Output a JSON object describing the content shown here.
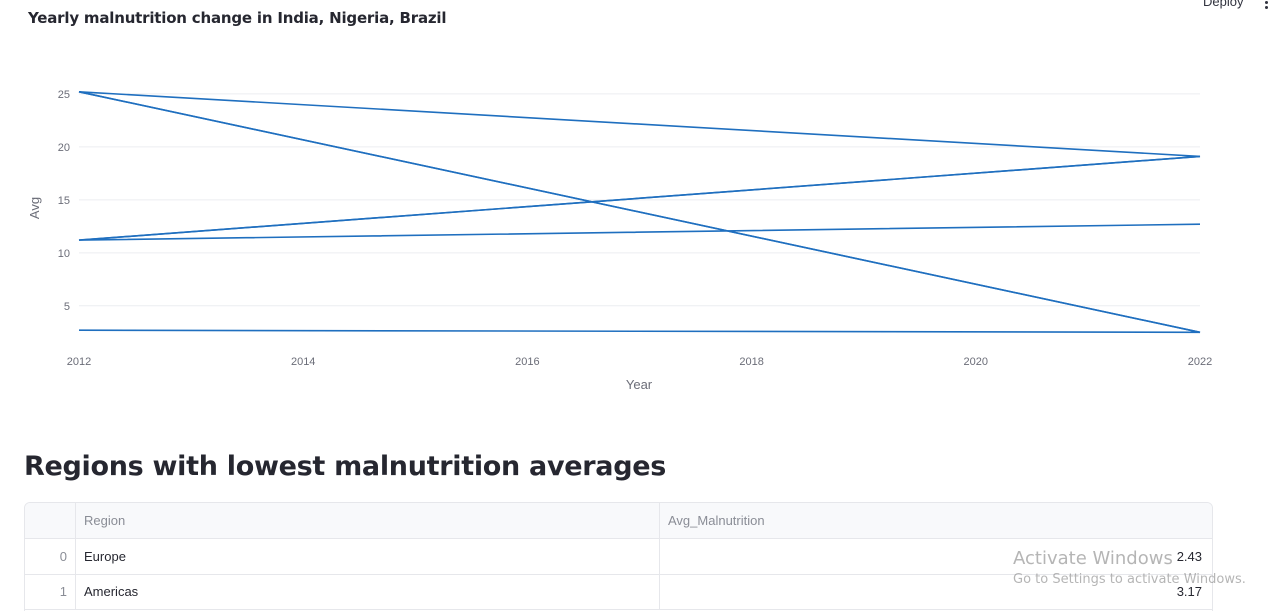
{
  "header": {
    "deploy_label": "Deploy",
    "menu_icon": "vertical-dots-icon"
  },
  "chart": {
    "title": "Yearly malnutrition change in India, Nigeria, Brazil",
    "xlabel": "Year",
    "ylabel": "Avg",
    "line_color": "#1f6fbf"
  },
  "chart_data": {
    "type": "line",
    "title": "Yearly malnutrition change in India, Nigeria, Brazil",
    "xlabel": "Year",
    "ylabel": "Avg",
    "xlim": [
      2012,
      2022
    ],
    "ylim": [
      1.3,
      28.2
    ],
    "x_ticks": [
      2012,
      2014,
      2016,
      2018,
      2020,
      2022
    ],
    "y_ticks": [
      5,
      10,
      15,
      20,
      25
    ],
    "grid": true,
    "x": [
      2012,
      2022,
      2012,
      2022,
      2012,
      2022,
      2012,
      2022
    ],
    "y": [
      2.7,
      2.5,
      25.2,
      19.1,
      11.2,
      12.7,
      11.2,
      19.1
    ],
    "closing_x": 2012,
    "closing_y": 25.2,
    "closing_x2": 2022,
    "closing_y2": 2.5
  },
  "section": {
    "heading": "Regions with lowest malnutrition averages"
  },
  "table": {
    "columns": [
      "Region",
      "Avg_Malnutrition"
    ],
    "rows": [
      {
        "index": "0",
        "region": "Europe",
        "avg": "2.43"
      },
      {
        "index": "1",
        "region": "Americas",
        "avg": "3.17"
      }
    ]
  },
  "watermark": {
    "title": "Activate Windows",
    "subtitle": "Go to Settings to activate Windows."
  }
}
